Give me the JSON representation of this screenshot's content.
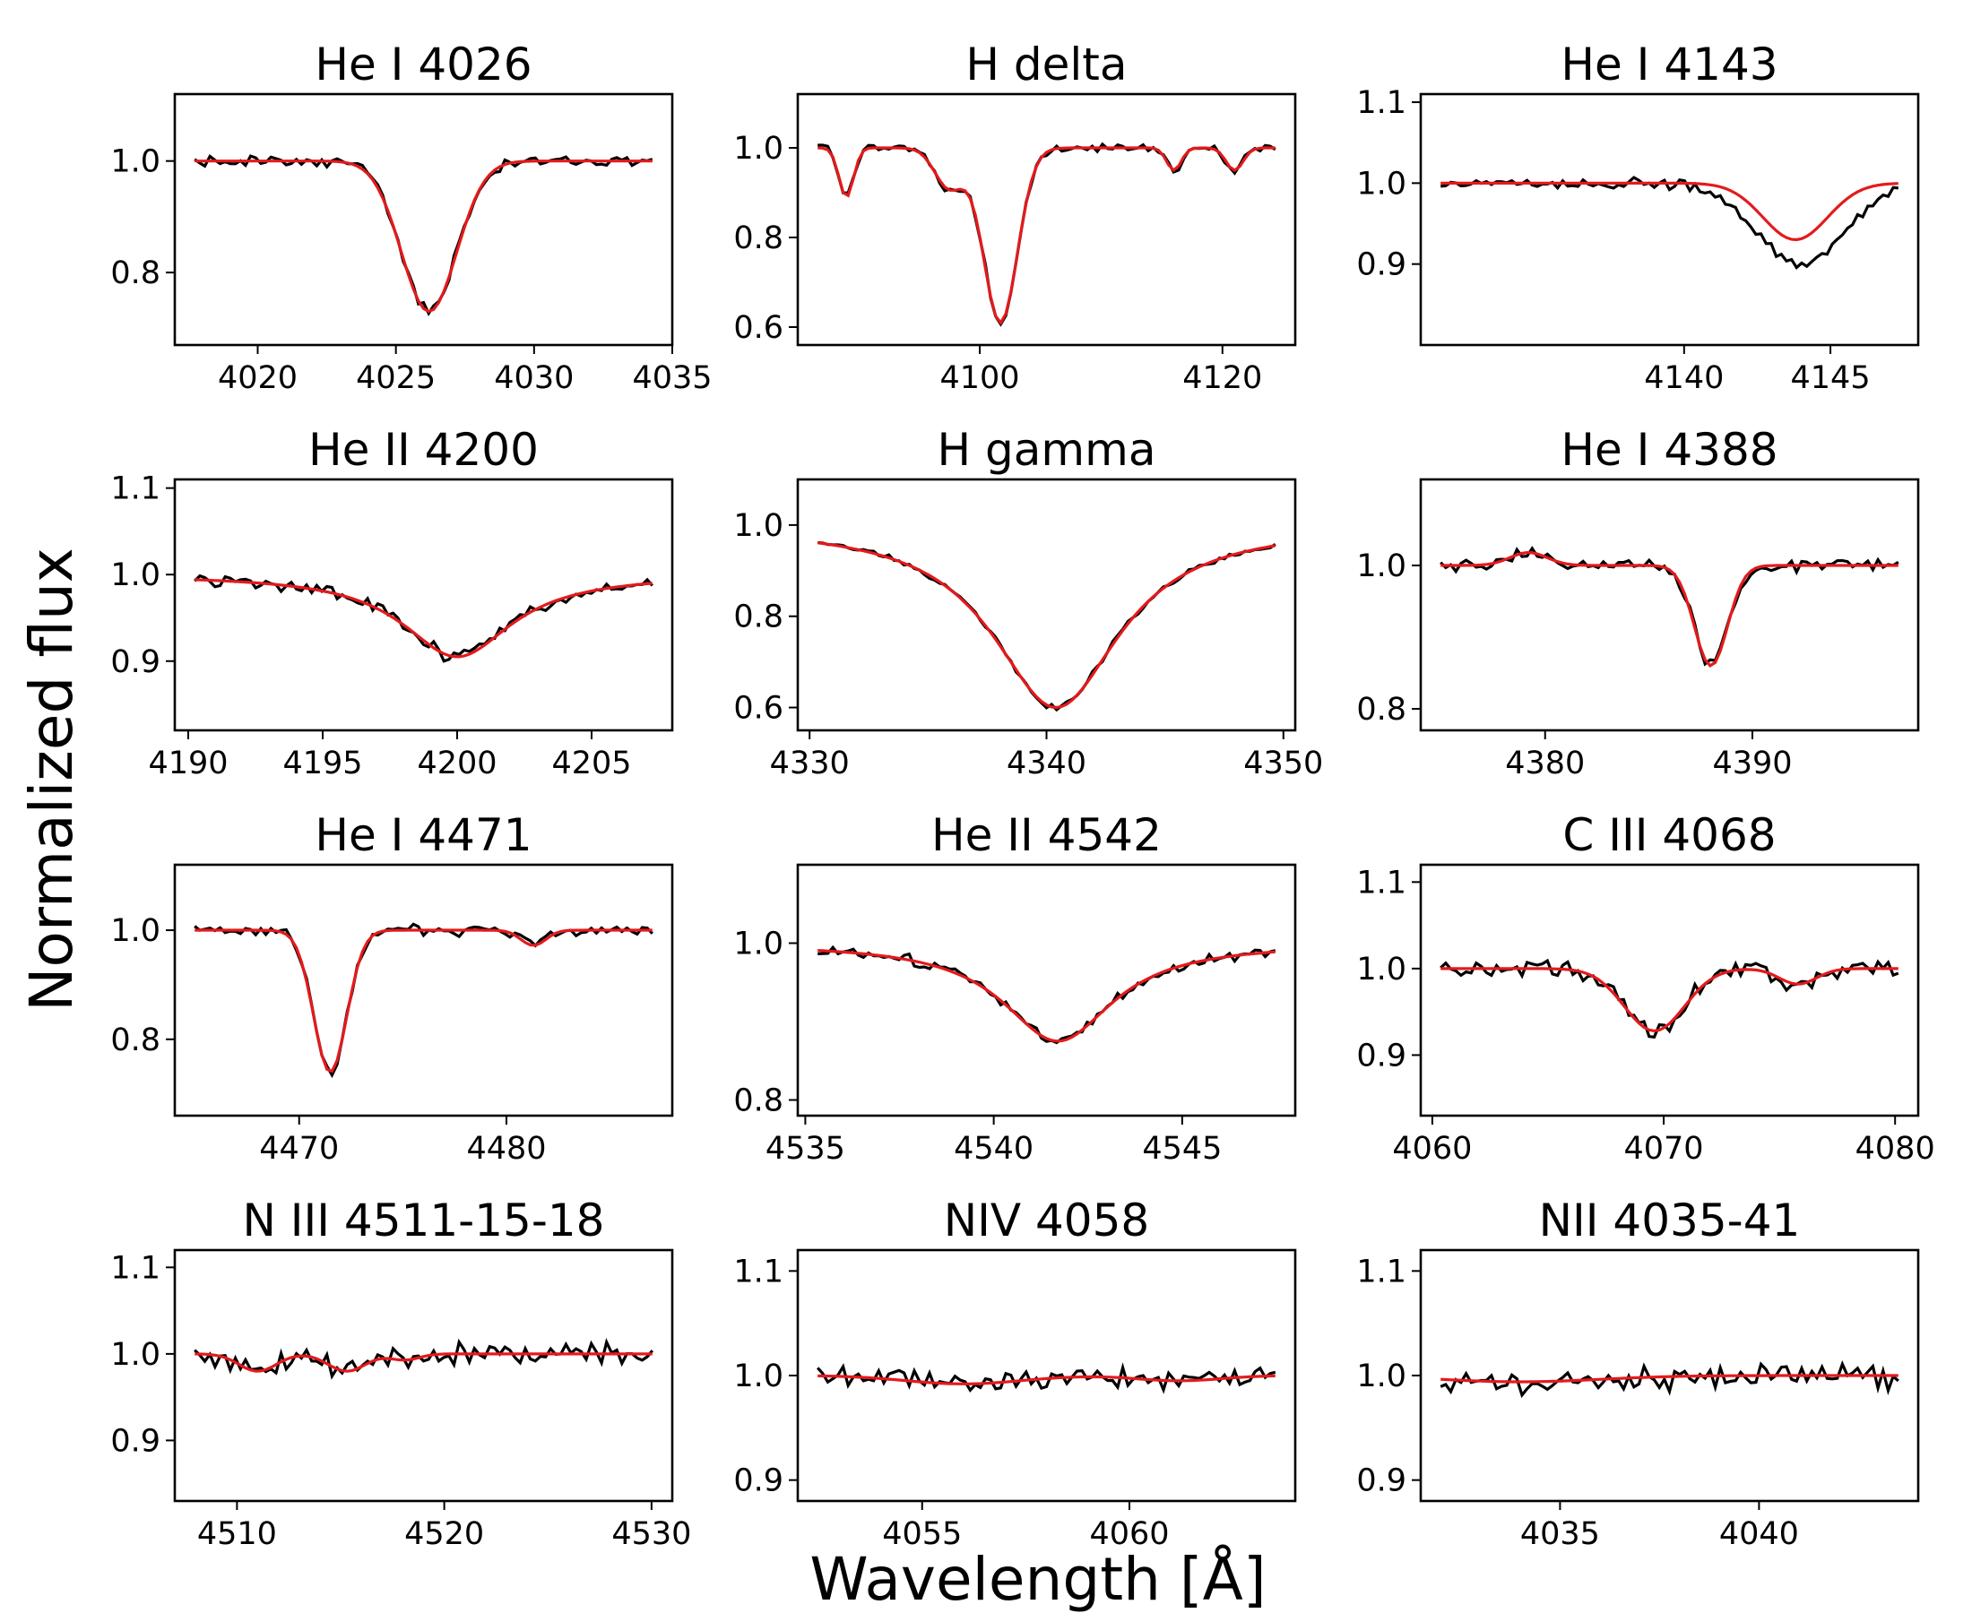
{
  "figure": {
    "xlabel": "Wavelength [Å]",
    "ylabel": "Normalized flux",
    "observed_color": "#000000",
    "model_color": "#e41a1c"
  },
  "chart_data": [
    {
      "type": "line",
      "title": "He I 4026",
      "xlim": [
        4017,
        4035
      ],
      "ylim": [
        0.67,
        1.12
      ],
      "xticks": [
        4020,
        4025,
        4030,
        4035
      ],
      "yticks": [
        0.8,
        1.0
      ],
      "line": {
        "center": 4026.2,
        "depth": 0.27,
        "width": 1.0,
        "kind": "gauss"
      },
      "features": [],
      "noise": 0.008,
      "seed": 1,
      "series": [
        {
          "name": "",
          "role": "observed"
        },
        {
          "name": "",
          "role": "model"
        }
      ]
    },
    {
      "type": "line",
      "title": "H delta",
      "xlim": [
        4085,
        4126
      ],
      "ylim": [
        0.56,
        1.12
      ],
      "xticks": [
        4100,
        4120
      ],
      "yticks": [
        0.6,
        0.8,
        1.0
      ],
      "line": {
        "center": 4101.7,
        "depth": 0.39,
        "width": 1.4,
        "kind": "gauss"
      },
      "features": [
        {
          "center": 4089.0,
          "depth": 0.11,
          "width": 0.6
        },
        {
          "center": 4097.5,
          "depth": 0.09,
          "width": 1.2
        },
        {
          "center": 4116.0,
          "depth": 0.05,
          "width": 0.6
        },
        {
          "center": 4121.0,
          "depth": 0.05,
          "width": 0.7
        }
      ],
      "noise": 0.007,
      "seed": 2,
      "series": [
        {
          "name": "",
          "role": "observed"
        },
        {
          "name": "",
          "role": "model"
        }
      ]
    },
    {
      "type": "line",
      "title": "He I 4143",
      "xlim": [
        4131,
        4148
      ],
      "ylim": [
        0.8,
        1.11
      ],
      "xticks": [
        4140,
        4145
      ],
      "yticks": [
        0.9,
        1.0,
        1.1
      ],
      "line": {
        "center": 4143.8,
        "depth": 0.07,
        "width": 1.1,
        "kind": "gauss"
      },
      "observed_line": {
        "center": 4144.0,
        "depth": 0.1,
        "width": 1.5
      },
      "features": [],
      "noise": 0.005,
      "seed": 3,
      "series": [
        {
          "name": "",
          "role": "observed"
        },
        {
          "name": "",
          "role": "model"
        }
      ]
    },
    {
      "type": "line",
      "title": "He II 4200",
      "xlim": [
        4189.5,
        4208
      ],
      "ylim": [
        0.82,
        1.11
      ],
      "xticks": [
        4190,
        4195,
        4200,
        4205
      ],
      "yticks": [
        0.9,
        1.0,
        1.1
      ],
      "line": {
        "center": 4200.0,
        "depth": 0.095,
        "width": 2.5,
        "kind": "lorentz"
      },
      "features": [],
      "noise": 0.006,
      "seed": 4,
      "series": [
        {
          "name": "",
          "role": "observed"
        },
        {
          "name": "",
          "role": "model"
        }
      ]
    },
    {
      "type": "line",
      "title": "H gamma",
      "xlim": [
        4329.5,
        4350.5
      ],
      "ylim": [
        0.55,
        1.1
      ],
      "xticks": [
        4330,
        4340,
        4350
      ],
      "yticks": [
        0.6,
        0.8,
        1.0
      ],
      "line": {
        "center": 4340.4,
        "depth": 0.4,
        "width": 3.3,
        "kind": "lorentz"
      },
      "features": [],
      "noise": 0.005,
      "seed": 5,
      "series": [
        {
          "name": "",
          "role": "observed"
        },
        {
          "name": "",
          "role": "model"
        }
      ]
    },
    {
      "type": "line",
      "title": "He I 4388",
      "xlim": [
        4374,
        4398
      ],
      "ylim": [
        0.77,
        1.12
      ],
      "xticks": [
        4380,
        4390
      ],
      "yticks": [
        0.8,
        1.0
      ],
      "line": {
        "center": 4388.0,
        "depth": 0.14,
        "width": 0.8,
        "kind": "gauss"
      },
      "features": [
        {
          "center": 4379.2,
          "depth": -0.018,
          "width": 0.9
        }
      ],
      "noise": 0.007,
      "seed": 6,
      "series": [
        {
          "name": "",
          "role": "observed"
        },
        {
          "name": "",
          "role": "model"
        }
      ]
    },
    {
      "type": "line",
      "title": "He I 4471",
      "xlim": [
        4464,
        4488
      ],
      "ylim": [
        0.66,
        1.12
      ],
      "xticks": [
        4470,
        4480
      ],
      "yticks": [
        0.8,
        1.0
      ],
      "line": {
        "center": 4471.5,
        "depth": 0.26,
        "width": 0.8,
        "kind": "gauss"
      },
      "features": [
        {
          "center": 4481.3,
          "depth": 0.028,
          "width": 0.6
        }
      ],
      "noise": 0.008,
      "seed": 7,
      "series": [
        {
          "name": "",
          "role": "observed"
        },
        {
          "name": "",
          "role": "model"
        }
      ]
    },
    {
      "type": "line",
      "title": "He II 4542",
      "xlim": [
        4534.8,
        4548
      ],
      "ylim": [
        0.78,
        1.1
      ],
      "xticks": [
        4535,
        4540,
        4545
      ],
      "yticks": [
        0.8,
        1.0
      ],
      "line": {
        "center": 4541.7,
        "depth": 0.125,
        "width": 1.8,
        "kind": "lorentz"
      },
      "features": [],
      "noise": 0.006,
      "seed": 8,
      "series": [
        {
          "name": "",
          "role": "observed"
        },
        {
          "name": "",
          "role": "model"
        }
      ]
    },
    {
      "type": "line",
      "title": "C III 4068",
      "xlim": [
        4059.5,
        4081
      ],
      "ylim": [
        0.83,
        1.12
      ],
      "xticks": [
        4060,
        4070,
        4080
      ],
      "yticks": [
        0.9,
        1.0,
        1.1
      ],
      "line": {
        "center": 4069.6,
        "depth": 0.072,
        "width": 1.3,
        "kind": "gauss"
      },
      "features": [
        {
          "center": 4075.8,
          "depth": 0.018,
          "width": 0.8
        }
      ],
      "noise": 0.008,
      "seed": 9,
      "series": [
        {
          "name": "",
          "role": "observed"
        },
        {
          "name": "",
          "role": "model"
        }
      ]
    },
    {
      "type": "line",
      "title": "N III 4511-15-18",
      "xlim": [
        4507,
        4531
      ],
      "ylim": [
        0.83,
        1.12
      ],
      "xticks": [
        4510,
        4520,
        4530
      ],
      "yticks": [
        0.9,
        1.0,
        1.1
      ],
      "line": {
        "center": 4511.0,
        "depth": 0.02,
        "width": 0.9,
        "kind": "gauss"
      },
      "features": [
        {
          "center": 4515.3,
          "depth": 0.02,
          "width": 0.9
        },
        {
          "center": 4518.1,
          "depth": 0.007,
          "width": 0.7
        }
      ],
      "noise": 0.01,
      "seed": 10,
      "series": [
        {
          "name": "",
          "role": "observed"
        },
        {
          "name": "",
          "role": "model"
        }
      ]
    },
    {
      "type": "line",
      "title": "NIV 4058",
      "xlim": [
        4052,
        4064
      ],
      "ylim": [
        0.88,
        1.12
      ],
      "xticks": [
        4055,
        4060
      ],
      "yticks": [
        0.9,
        1.0,
        1.1
      ],
      "line": {
        "center": 4056.0,
        "depth": 0.008,
        "width": 1.4,
        "kind": "gauss"
      },
      "features": [
        {
          "center": 4061.2,
          "depth": 0.005,
          "width": 1.0
        }
      ],
      "noise": 0.008,
      "seed": 11,
      "series": [
        {
          "name": "",
          "role": "observed"
        },
        {
          "name": "",
          "role": "model"
        }
      ]
    },
    {
      "type": "line",
      "title": "NII 4035-41",
      "xlim": [
        4031.5,
        4044
      ],
      "ylim": [
        0.88,
        1.12
      ],
      "xticks": [
        4035,
        4040
      ],
      "yticks": [
        0.9,
        1.0,
        1.1
      ],
      "line": {
        "center": 4034.0,
        "depth": 0.006,
        "width": 2.0,
        "kind": "gauss"
      },
      "features": [],
      "noise": 0.01,
      "seed": 12,
      "series": [
        {
          "name": "",
          "role": "observed"
        },
        {
          "name": "",
          "role": "model"
        }
      ]
    }
  ]
}
